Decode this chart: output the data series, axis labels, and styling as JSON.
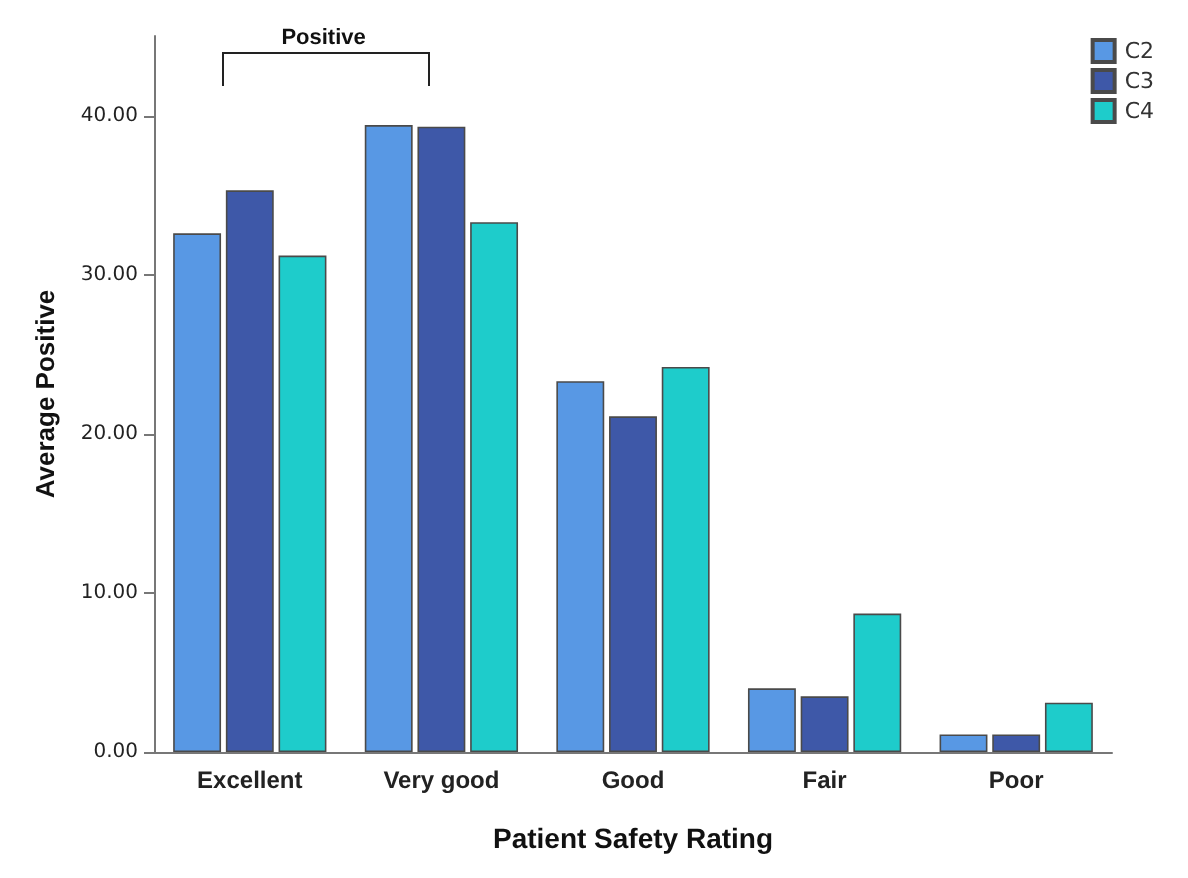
{
  "chart_data": {
    "type": "bar",
    "xlabel": "Patient Safety Rating",
    "ylabel": "Average Positive",
    "annotations": [
      "Positive"
    ],
    "categories": [
      "Excellent",
      "Very good",
      "Good",
      "Fair",
      "Poor"
    ],
    "series": [
      {
        "name": "C2",
        "color": "#5898e4",
        "values": [
          32.6,
          39.4,
          23.3,
          4.0,
          1.1
        ]
      },
      {
        "name": "C3",
        "color": "#3e58a8",
        "values": [
          35.3,
          39.3,
          21.1,
          3.5,
          1.1
        ]
      },
      {
        "name": "C4",
        "color": "#1ecccb",
        "values": [
          31.2,
          33.3,
          24.2,
          8.7,
          3.1
        ]
      }
    ],
    "ylim": [
      0,
      45
    ],
    "yticks": [
      {
        "value": 0,
        "label": "0.00"
      },
      {
        "value": 10,
        "label": "10.00"
      },
      {
        "value": 20,
        "label": "20.00"
      },
      {
        "value": 30,
        "label": "30.00"
      },
      {
        "value": 40,
        "label": "40.00"
      }
    ],
    "grid": false,
    "legend": "top right"
  }
}
